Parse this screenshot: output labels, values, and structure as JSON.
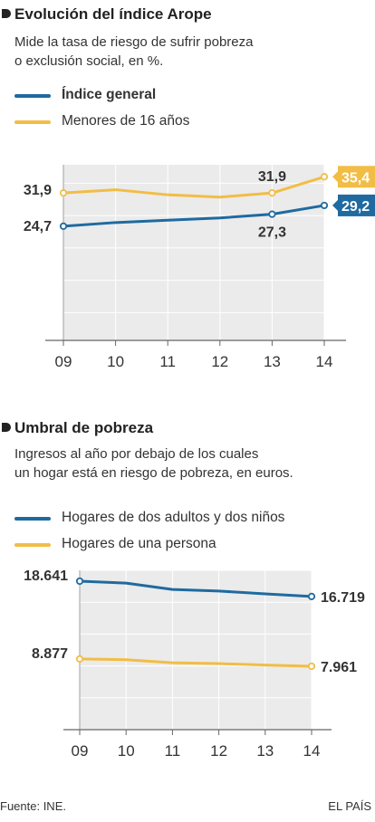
{
  "colors": {
    "blue": "#1f6aa0",
    "yellow": "#f2bd45",
    "plot_bg": "#ebebeb",
    "grid": "#ffffff"
  },
  "chart1": {
    "title": "Evolución del índice Arope",
    "subtitle_line1": "Mide la tasa de riesgo de sufrir pobreza",
    "subtitle_line2": "o exclusión social, en %."
  },
  "chart2": {
    "title": "Umbral de pobreza",
    "subtitle_line1": "Ingresos al año por debajo de los cuales",
    "subtitle_line2": "un hogar está en riesgo de pobreza, en euros."
  },
  "footer": {
    "source": "Fuente: INE.",
    "brand": "EL PAÍS"
  },
  "chart_data": [
    {
      "type": "line",
      "title": "Evolución del índice Arope",
      "x": [
        "09",
        "10",
        "11",
        "12",
        "13",
        "14"
      ],
      "series": [
        {
          "name": "Índice general",
          "color": "#1f6aa0",
          "values": [
            24.7,
            25.5,
            26.0,
            26.5,
            27.3,
            29.2
          ]
        },
        {
          "name": "Menores de 16 años",
          "color": "#f2bd45",
          "values": [
            31.9,
            32.6,
            31.5,
            31.0,
            31.9,
            35.4
          ]
        }
      ],
      "labels": [
        {
          "text": "31,9",
          "where": "left-of-first"
        },
        {
          "text": "24,7",
          "where": "left-of-first"
        },
        {
          "text": "31,9",
          "where": "above"
        },
        {
          "text": "27,3",
          "where": "below"
        },
        {
          "text": "35,4",
          "where": "end-tag"
        },
        {
          "text": "29,2",
          "where": "end-tag"
        }
      ],
      "ylim": [
        0,
        38
      ],
      "grid": true
    },
    {
      "type": "line",
      "title": "Umbral de pobreza",
      "x": [
        "09",
        "10",
        "11",
        "12",
        "13",
        "14"
      ],
      "series": [
        {
          "name": "Hogares de dos adultos y dos niños",
          "color": "#1f6aa0",
          "values": [
            18641,
            18400,
            17600,
            17400,
            17050,
            16719
          ]
        },
        {
          "name": "Hogares de una persona",
          "color": "#f2bd45",
          "values": [
            8877,
            8780,
            8400,
            8290,
            8110,
            7961
          ]
        }
      ],
      "labels": [
        {
          "text": "18.641",
          "where": "left-of-first"
        },
        {
          "text": "16.719",
          "where": "right-of-last"
        },
        {
          "text": "8.877",
          "where": "left-of-first"
        },
        {
          "text": "7.961",
          "where": "right-of-last"
        }
      ],
      "ylim": [
        0,
        20000
      ],
      "grid": true
    }
  ]
}
